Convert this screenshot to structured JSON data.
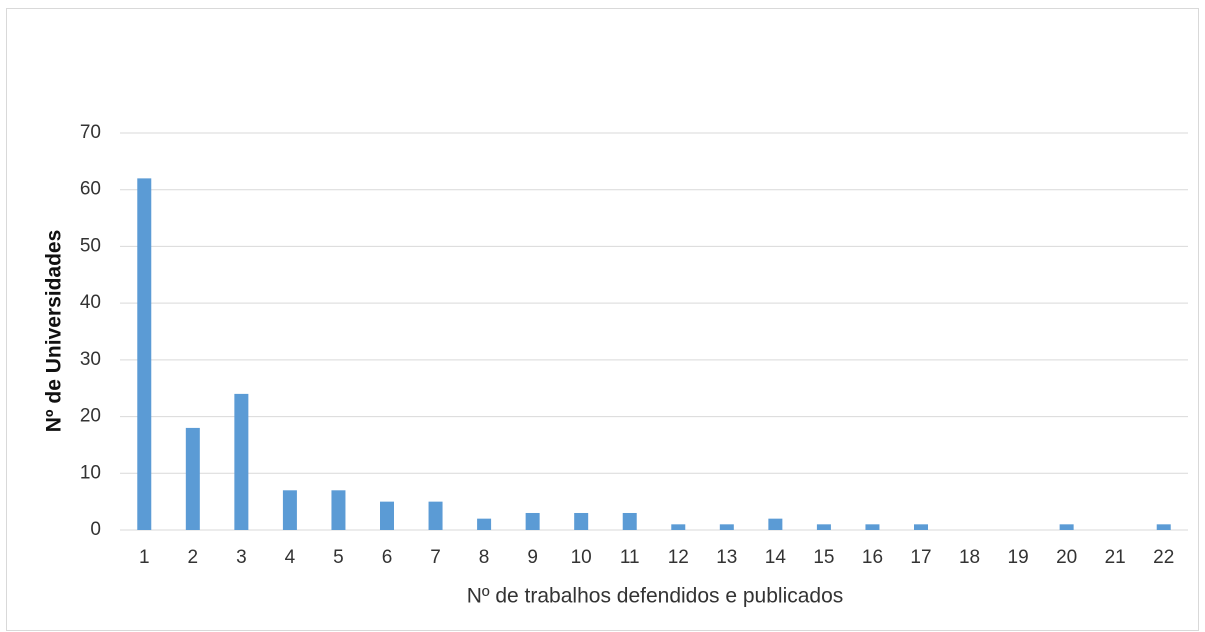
{
  "chart_data": {
    "type": "bar",
    "x_label": "Nº de trabalhos defendidos e publicados",
    "y_label": "Nº de Universidades",
    "categories": [
      "1",
      "2",
      "3",
      "4",
      "5",
      "6",
      "7",
      "8",
      "9",
      "10",
      "11",
      "12",
      "13",
      "14",
      "15",
      "16",
      "17",
      "18",
      "19",
      "20",
      "21",
      "22"
    ],
    "values": [
      62,
      18,
      24,
      7,
      7,
      5,
      5,
      2,
      3,
      3,
      3,
      1,
      1,
      2,
      1,
      1,
      1,
      0,
      0,
      1,
      0,
      1
    ],
    "color": "#5b9bd5",
    "ylim": [
      0,
      70
    ],
    "yticks": [
      0,
      10,
      20,
      30,
      40,
      50,
      60,
      70
    ],
    "grid": true
  }
}
